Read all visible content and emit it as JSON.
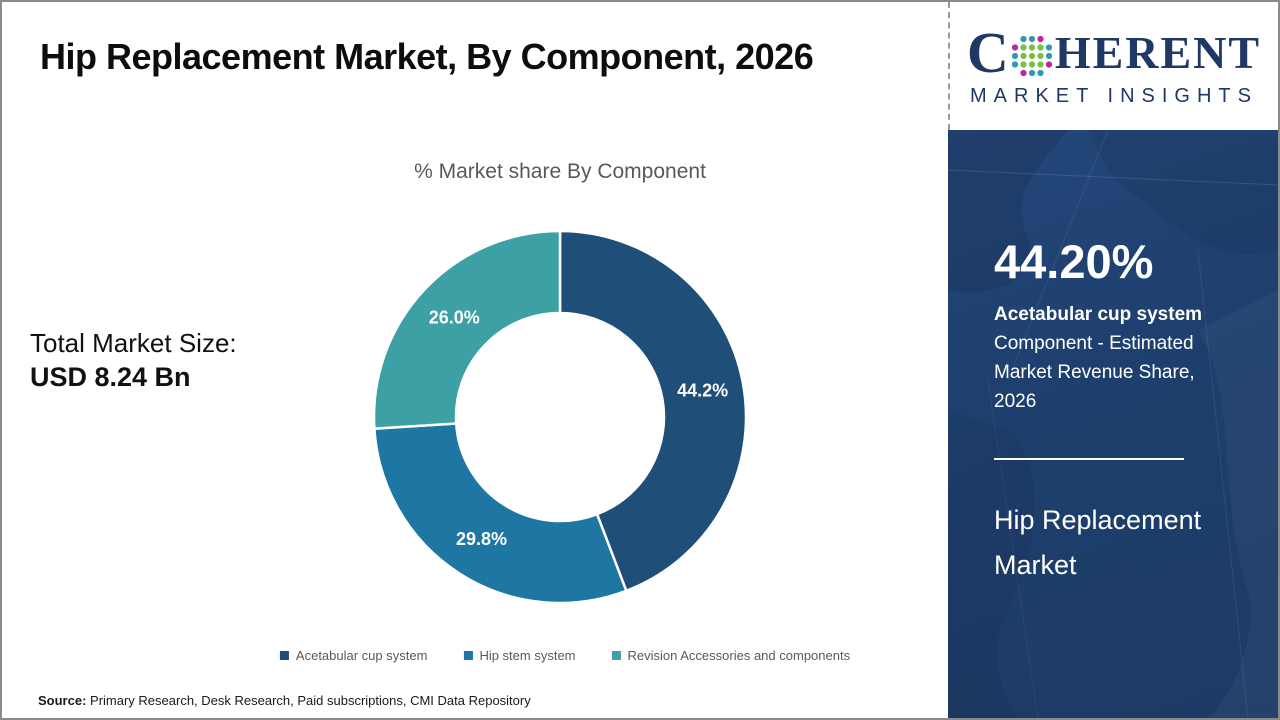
{
  "header": {
    "title": "Hip Replacement Market, By Component, 2026"
  },
  "logo": {
    "word_start": "C",
    "word_end": "HERENT",
    "subtitle": "MARKET INSIGHTS",
    "navy_color": "#1F3864",
    "globe_colors": {
      "teal": "#2E9BA6",
      "green": "#7AC143",
      "magenta": "#C4258F"
    }
  },
  "main": {
    "total_market_size_label": "Total Market Size:",
    "total_market_size_value": "USD 8.24 Bn",
    "source_label": "Source:",
    "source_text": " Primary Research, Desk Research, Paid subscriptions, CMI Data Repository"
  },
  "chart_data": {
    "type": "pie",
    "donut": true,
    "title": "% Market share By Component",
    "start_angle_deg": 0,
    "direction": "clockwise",
    "legend_position": "bottom",
    "series": [
      {
        "name": "Acetabular cup system",
        "value": 44.2,
        "label": "44.2%",
        "color": "#1F4E79"
      },
      {
        "name": "Hip stem system",
        "value": 29.8,
        "label": "29.8%",
        "color": "#1E76A2"
      },
      {
        "name": "Revision Accessories and components",
        "value": 26.0,
        "label": "26.0%",
        "color": "#3DA0A4"
      }
    ]
  },
  "sidebar": {
    "stat_value": "44.20%",
    "stat_label_bold": "Acetabular cup system",
    "stat_label_rest": " Component - Estimated Market Revenue Share, 2026",
    "market_name": "Hip Replacement Market",
    "panel_color": "#1E3F6D"
  }
}
